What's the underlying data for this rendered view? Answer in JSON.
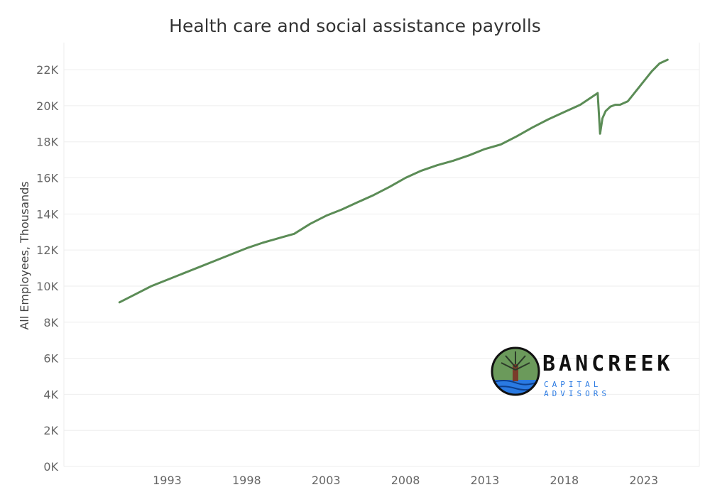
{
  "chart_data": {
    "type": "line",
    "title": "Health care and social assistance payrolls",
    "xlabel": "",
    "ylabel": "All Employees, Thousands",
    "ylim": [
      0,
      23500
    ],
    "xlim": [
      1986.5,
      2026.5
    ],
    "x_ticks": [
      1993,
      1998,
      2003,
      2008,
      2013,
      2018,
      2023
    ],
    "x_tick_labels": [
      "1993",
      "1998",
      "2003",
      "2008",
      "2013",
      "2018",
      "2023"
    ],
    "y_ticks": [
      0,
      2000,
      4000,
      6000,
      8000,
      10000,
      12000,
      14000,
      16000,
      18000,
      20000,
      22000
    ],
    "y_tick_labels": [
      "0K",
      "2K",
      "4K",
      "6K",
      "8K",
      "10K",
      "12K",
      "14K",
      "16K",
      "18K",
      "20K",
      "22K"
    ],
    "grid": true,
    "series": [
      {
        "color": "#5b8c56",
        "x": [
          1990.0,
          1991.0,
          1992.0,
          1993.0,
          1994.0,
          1995.0,
          1996.0,
          1997.0,
          1998.0,
          1999.0,
          2000.0,
          2001.0,
          2002.0,
          2003.0,
          2004.0,
          2005.0,
          2006.0,
          2007.0,
          2008.0,
          2009.0,
          2010.0,
          2011.0,
          2012.0,
          2013.0,
          2014.0,
          2015.0,
          2016.0,
          2017.0,
          2018.0,
          2019.0,
          2020.1,
          2020.25,
          2020.4,
          2020.6,
          2020.9,
          2021.2,
          2021.5,
          2022.0,
          2022.5,
          2023.0,
          2023.5,
          2024.0,
          2024.5
        ],
        "y": [
          9100,
          9550,
          10000,
          10350,
          10700,
          11050,
          11400,
          11750,
          12100,
          12400,
          12650,
          12900,
          13450,
          13900,
          14250,
          14650,
          15050,
          15500,
          16000,
          16400,
          16700,
          16950,
          17250,
          17600,
          17850,
          18300,
          18800,
          19250,
          19650,
          20050,
          20700,
          18450,
          19300,
          19700,
          19950,
          20050,
          20050,
          20250,
          20800,
          21350,
          21900,
          22350,
          22550
        ]
      }
    ]
  },
  "logo": {
    "name": "BANCREEK",
    "tagline": "CAPITAL ADVISORS"
  }
}
